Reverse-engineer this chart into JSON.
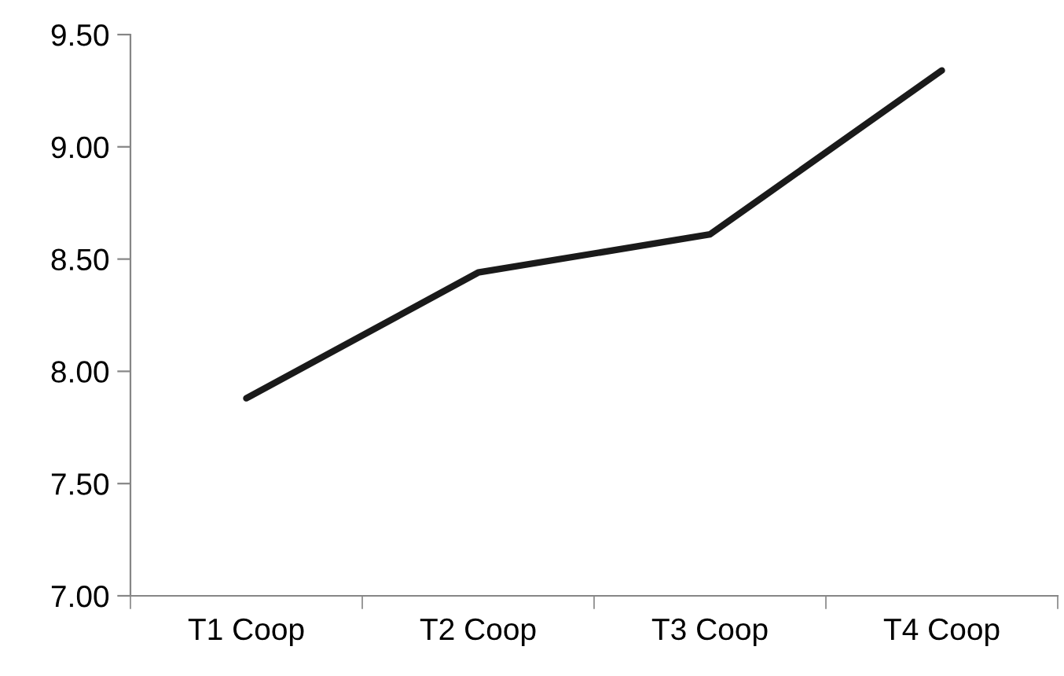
{
  "chart_data": {
    "type": "line",
    "categories": [
      "T1 Coop",
      "T2 Coop",
      "T3 Coop",
      "T4 Coop"
    ],
    "series": [
      {
        "color": "#1a1a1a",
        "values": [
          7.88,
          8.44,
          8.61,
          9.34
        ]
      }
    ],
    "ylim": [
      7.0,
      9.5
    ],
    "yticks": [
      {
        "value": 7.0,
        "label": "7.00"
      },
      {
        "value": 7.5,
        "label": "7.50"
      },
      {
        "value": 8.0,
        "label": "8.00"
      },
      {
        "value": 8.5,
        "label": "8.50"
      },
      {
        "value": 9.0,
        "label": "9.00"
      },
      {
        "value": 9.5,
        "label": "9.50"
      }
    ],
    "grid": false,
    "legend": false,
    "marker": "none",
    "line_style": "solid"
  }
}
